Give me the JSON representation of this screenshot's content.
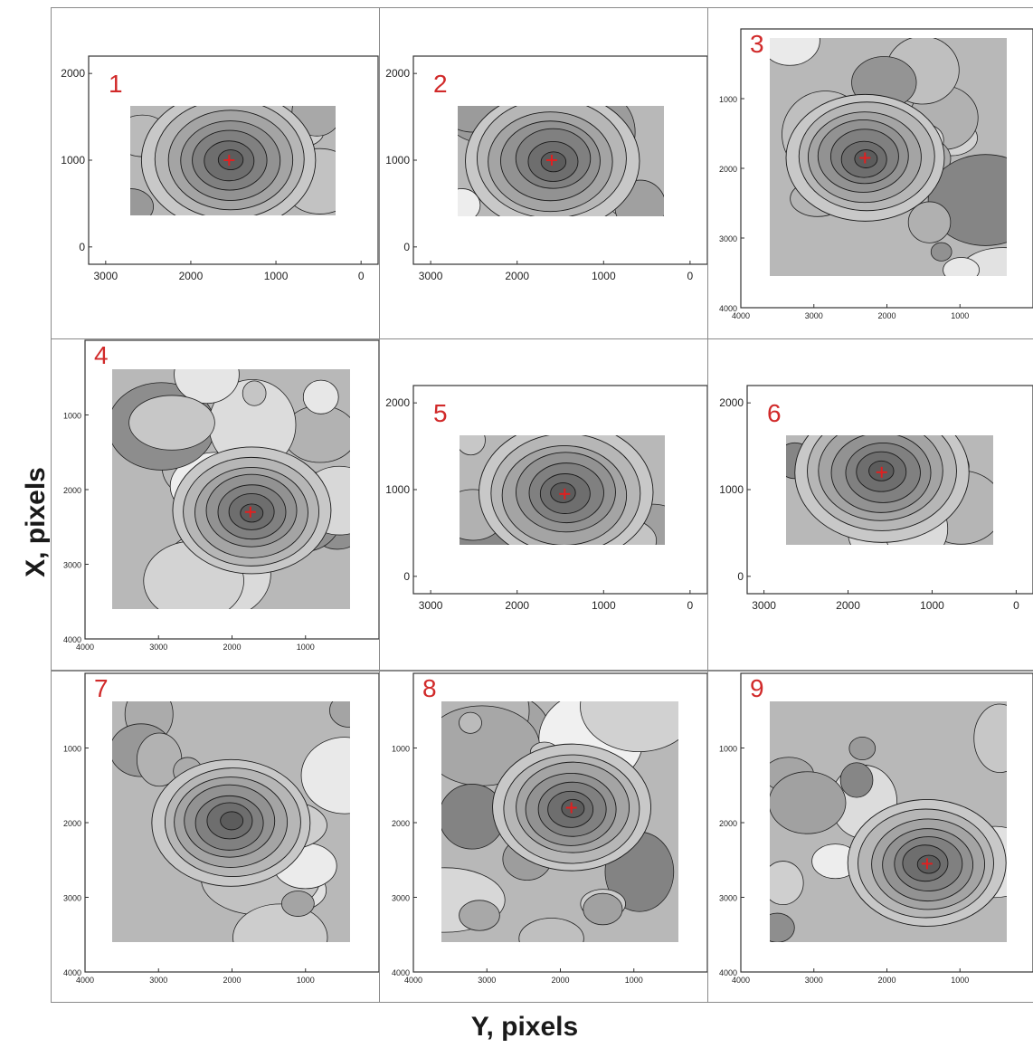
{
  "axis_labels": {
    "y": "X, pixels",
    "x": "Y, pixels"
  },
  "chart_data": [
    {
      "type": "heatmap",
      "label": "1",
      "x_axis_ticks": [
        "3000",
        "2000",
        "1000",
        "0"
      ],
      "y_axis_ticks": [
        "2000",
        "1000",
        "0"
      ],
      "xlim": [
        3200,
        -200
      ],
      "ylim": [
        -200,
        2200
      ],
      "marker": {
        "y": 1550,
        "x": 1000
      },
      "peak_color": "#e02020"
    },
    {
      "type": "heatmap",
      "label": "2",
      "x_axis_ticks": [
        "3000",
        "2000",
        "1000",
        "0"
      ],
      "y_axis_ticks": [
        "2000",
        "1000",
        "0"
      ],
      "xlim": [
        3200,
        -200
      ],
      "ylim": [
        -200,
        2200
      ],
      "marker": {
        "y": 1600,
        "x": 1000
      },
      "peak_color": "#e02020"
    },
    {
      "type": "heatmap",
      "label": "3",
      "x_axis_ticks": [
        "4000",
        "3000",
        "2000",
        "1000"
      ],
      "y_axis_ticks": [
        "1000",
        "2000",
        "3000",
        "4000"
      ],
      "xlim": [
        4000,
        0
      ],
      "ylim": [
        4000,
        0
      ],
      "marker": {
        "y": 2300,
        "x": 1850
      },
      "peak_color": "#e02020"
    },
    {
      "type": "heatmap",
      "label": "4",
      "x_axis_ticks": [
        "4000",
        "3000",
        "2000",
        "1000"
      ],
      "y_axis_ticks": [
        "1000",
        "2000",
        "3000",
        "4000"
      ],
      "xlim": [
        4000,
        0
      ],
      "ylim": [
        4000,
        0
      ],
      "marker": {
        "y": 1750,
        "x": 2300
      },
      "peak_color": "#e02020"
    },
    {
      "type": "heatmap",
      "label": "5",
      "x_axis_ticks": [
        "3000",
        "2000",
        "1000",
        "0"
      ],
      "y_axis_ticks": [
        "2000",
        "1000",
        "0"
      ],
      "xlim": [
        3200,
        -200
      ],
      "ylim": [
        -200,
        2200
      ],
      "marker": {
        "y": 1450,
        "x": 950
      },
      "peak_color": "#e02020"
    },
    {
      "type": "heatmap",
      "label": "6",
      "x_axis_ticks": [
        "3000",
        "2000",
        "1000",
        "0"
      ],
      "y_axis_ticks": [
        "2000",
        "1000",
        "0"
      ],
      "xlim": [
        3200,
        -200
      ],
      "ylim": [
        -200,
        2200
      ],
      "marker": {
        "y": 1600,
        "x": 1200
      },
      "peak_color": "#e02020"
    },
    {
      "type": "heatmap",
      "label": "7",
      "x_axis_ticks": [
        "4000",
        "3000",
        "2000",
        "1000"
      ],
      "y_axis_ticks": [
        "1000",
        "2000",
        "3000",
        "4000"
      ],
      "xlim": [
        4000,
        0
      ],
      "ylim": [
        4000,
        0
      ],
      "marker": null,
      "peak_color": "#e02020"
    },
    {
      "type": "heatmap",
      "label": "8",
      "x_axis_ticks": [
        "4000",
        "3000",
        "2000",
        "1000"
      ],
      "y_axis_ticks": [
        "1000",
        "2000",
        "3000",
        "4000"
      ],
      "xlim": [
        4000,
        0
      ],
      "ylim": [
        4000,
        0
      ],
      "marker": {
        "y": 1850,
        "x": 1800
      },
      "peak_color": "#e02020"
    },
    {
      "type": "heatmap",
      "label": "9",
      "x_axis_ticks": [
        "4000",
        "3000",
        "2000",
        "1000"
      ],
      "y_axis_ticks": [
        "1000",
        "2000",
        "3000",
        "4000"
      ],
      "xlim": [
        4000,
        0
      ],
      "ylim": [
        4000,
        0
      ],
      "marker": {
        "y": 1450,
        "x": 2550
      },
      "peak_color": "#e02020"
    }
  ]
}
